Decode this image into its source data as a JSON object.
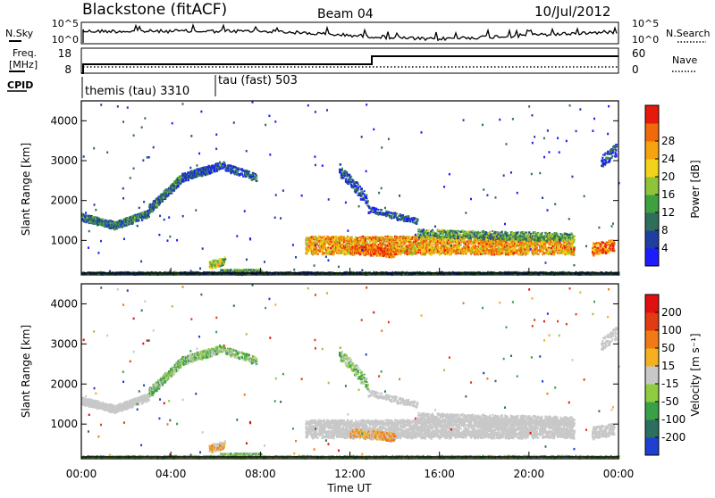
{
  "header": {
    "station": "Blackstone (fitACF)",
    "beam": "Beam 04",
    "date": "10/Jul/2012"
  },
  "top_panels": {
    "nsky_label": "N.Sky",
    "nsky_ticks": [
      "10^5",
      "10^0"
    ],
    "nsearch_label": "N.Search",
    "nsearch_ticks": [
      "10^5",
      "10^0"
    ],
    "freq_label_line1": "Freq.",
    "freq_label_line2": "[MHz]",
    "freq_ticks": [
      "18",
      "8"
    ],
    "nave_label": "Nave",
    "nave_ticks": [
      "60",
      "0"
    ],
    "cpid_label": "CPID",
    "cpid_segments": [
      {
        "label": "themis (tau) 3310",
        "start": "00:00"
      },
      {
        "label": "tau (fast) 503",
        "start": "06:00"
      }
    ]
  },
  "chart_data": [
    {
      "type": "heatmap",
      "title": "",
      "xlabel": "",
      "ylabel": "Slant Range [km]",
      "x_range_hours": [
        0,
        24
      ],
      "ylim": [
        180,
        4500
      ],
      "yticks": [
        "1000",
        "2000",
        "3000",
        "4000"
      ],
      "colorbar": {
        "label": "Power [dB]",
        "ticks": [
          "4",
          "8",
          "12",
          "16",
          "20",
          "24",
          "28"
        ],
        "colors": [
          "#1c1cff",
          "#1f3fa0",
          "#2e6e5a",
          "#3fa040",
          "#8fc43a",
          "#f2d21a",
          "#f5a30f",
          "#f06a0c",
          "#e51a0a"
        ]
      }
    },
    {
      "type": "heatmap",
      "title": "",
      "xlabel": "Time UT",
      "ylabel": "Slant Range [km]",
      "x_range_hours": [
        0,
        24
      ],
      "ylim": [
        180,
        4500
      ],
      "yticks": [
        "1000",
        "2000",
        "3000",
        "4000"
      ],
      "xticks": [
        "00:00",
        "04:00",
        "08:00",
        "12:00",
        "16:00",
        "20:00",
        "00:00"
      ],
      "colorbar": {
        "label": "Velocity [m s⁻¹]",
        "ticks": [
          "200",
          "100",
          "50",
          "15",
          "-15",
          "-50",
          "-100",
          "-200"
        ],
        "colors": [
          "#1f3fd0",
          "#2c6e60",
          "#3aa046",
          "#8fcc40",
          "#c8c8c8",
          "#f5b020",
          "#f07a14",
          "#e23a12",
          "#e01010"
        ]
      }
    }
  ]
}
